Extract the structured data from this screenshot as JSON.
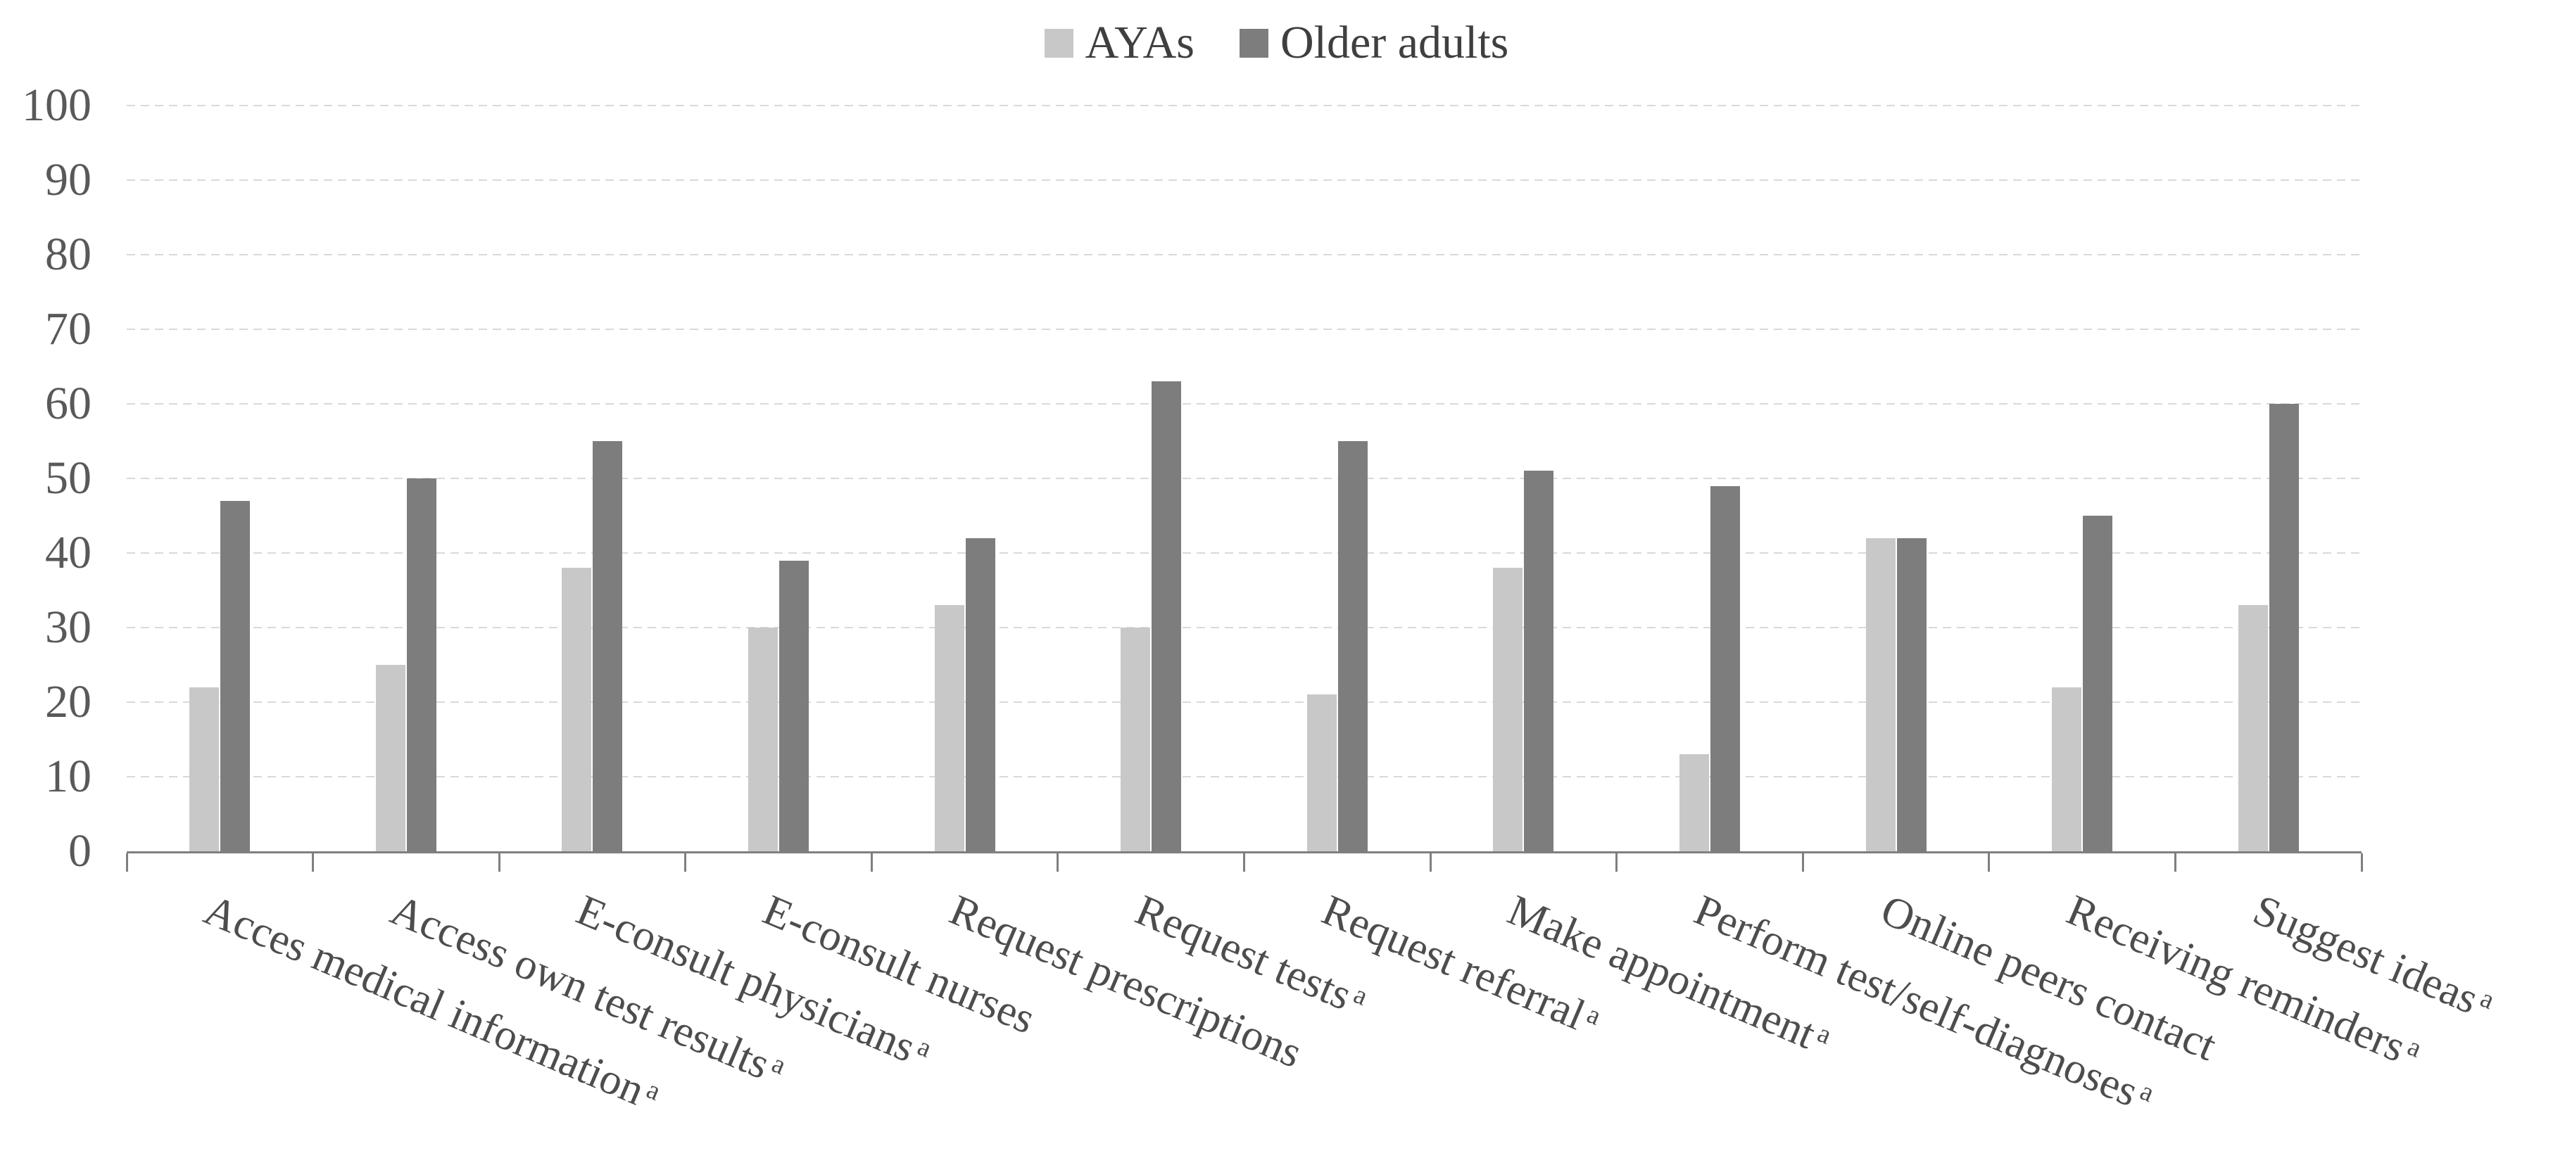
{
  "chart_data": {
    "type": "bar",
    "title": "",
    "categories": [
      "Acces medical information",
      "Access own test results",
      "E-consult physicians",
      "E-consult nurses",
      "Request prescriptions",
      "Request tests",
      "Request referral",
      "Make appointment",
      "Perform test/self-diagnoses",
      "Online peers contact",
      "Receiving reminders",
      "Suggest ideas"
    ],
    "category_superscripts": [
      "a",
      "a",
      "a",
      "",
      "",
      "a",
      "a",
      "a",
      "a",
      "",
      "a",
      "a"
    ],
    "series": [
      {
        "name": "AYAs",
        "color": "#c8c8c8",
        "values": [
          22,
          25,
          38,
          30,
          33,
          30,
          21,
          38,
          13,
          42,
          22,
          33
        ]
      },
      {
        "name": "Older adults",
        "color": "#7d7d7d",
        "values": [
          47,
          50,
          55,
          39,
          42,
          63,
          55,
          51,
          49,
          42,
          45,
          60
        ]
      }
    ],
    "xlabel": "",
    "ylabel": "",
    "ylim": [
      0,
      100
    ],
    "yticks": [
      0,
      10,
      20,
      30,
      40,
      50,
      60,
      70,
      80,
      90,
      100
    ],
    "grid": "horizontal-dashed",
    "legend_position": "top-center"
  },
  "colors": {
    "gridline": "#d9d9d9",
    "axis_line": "#7f7f7f",
    "y_tick_text": "#595959",
    "x_label_text": "#4d4d4d",
    "legend_text": "#3f3f3f",
    "background": "#ffffff"
  }
}
